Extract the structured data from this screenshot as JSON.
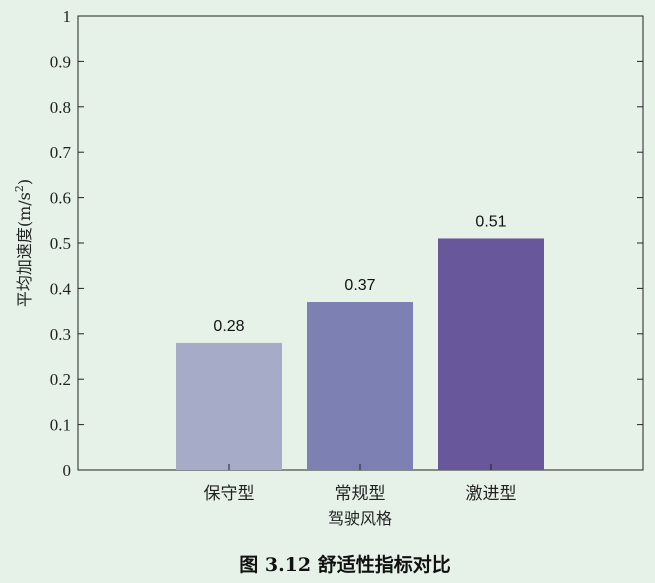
{
  "chart_data": {
    "type": "bar",
    "categories": [
      "保守型",
      "常规型",
      "激进型"
    ],
    "values": [
      0.28,
      0.37,
      0.51
    ],
    "data_labels": [
      "0.28",
      "0.37",
      "0.51"
    ],
    "colors": [
      "#a6abc8",
      "#7d80b3",
      "#68579b"
    ],
    "xlabel": "驾驶风格",
    "ylabel": "平均加速度(m/s",
    "ylabel_sup": "2",
    "ylabel_close": ")",
    "ylim": [
      0,
      1
    ],
    "yticks": [
      0,
      0.1,
      0.2,
      0.3,
      0.4,
      0.5,
      0.6,
      0.7,
      0.8,
      0.9,
      1
    ],
    "ytick_labels": [
      "0",
      "0.1",
      "0.2",
      "0.3",
      "0.4",
      "0.5",
      "0.6",
      "0.7",
      "0.8",
      "0.9",
      "1"
    ],
    "grid": false,
    "legend": "none"
  },
  "caption": "图 3.12  舒适性指标对比",
  "colors": {
    "background": "#e6f2e8",
    "axis": "#222222"
  }
}
